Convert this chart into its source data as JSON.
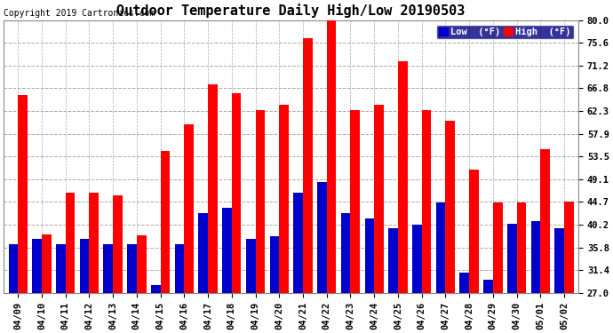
{
  "title": "Outdoor Temperature Daily High/Low 20190503",
  "copyright": "Copyright 2019 Cartronics.com",
  "legend_low": "Low  (°F)",
  "legend_high": "High  (°F)",
  "dates": [
    "04/09",
    "04/10",
    "04/11",
    "04/12",
    "04/13",
    "04/14",
    "04/15",
    "04/16",
    "04/17",
    "04/18",
    "04/19",
    "04/20",
    "04/21",
    "04/22",
    "04/23",
    "04/24",
    "04/25",
    "04/26",
    "04/27",
    "04/28",
    "04/29",
    "04/30",
    "05/01",
    "05/02"
  ],
  "high": [
    65.5,
    38.3,
    46.4,
    46.4,
    46.0,
    38.2,
    54.5,
    59.8,
    67.5,
    65.8,
    62.5,
    63.5,
    76.5,
    80.2,
    62.5,
    63.5,
    72.0,
    62.6,
    60.5,
    51.0,
    44.5,
    44.5,
    55.0,
    44.7
  ],
  "low": [
    36.5,
    37.5,
    36.5,
    37.5,
    36.5,
    36.5,
    28.5,
    36.5,
    42.5,
    43.5,
    37.5,
    38.0,
    46.5,
    48.5,
    42.5,
    41.5,
    39.5,
    40.2,
    44.5,
    31.0,
    29.5,
    40.5,
    41.0,
    39.5
  ],
  "ylim": [
    27.0,
    80.0
  ],
  "yticks": [
    27.0,
    31.4,
    35.8,
    40.2,
    44.7,
    49.1,
    53.5,
    57.9,
    62.3,
    66.8,
    71.2,
    75.6,
    80.0
  ],
  "bar_width": 0.4,
  "high_color": "#FF0000",
  "low_color": "#0000CC",
  "background_color": "#FFFFFF",
  "plot_bg_color": "#FFFFFF",
  "grid_color": "#AAAAAA",
  "title_fontsize": 11,
  "tick_fontsize": 7.5,
  "copyright_fontsize": 7
}
